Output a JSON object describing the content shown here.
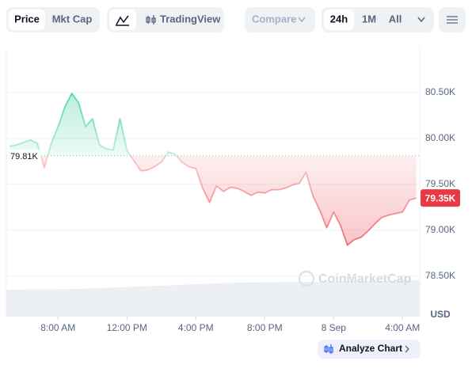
{
  "toolbar": {
    "price": "Price",
    "mkt_cap": "Mkt Cap",
    "tradingview": "TradingView",
    "compare": "Compare",
    "range_24h": "24h",
    "range_1m": "1M",
    "range_all": "All"
  },
  "chart_data": {
    "type": "line",
    "x": [
      5.2,
      5.6,
      6.0,
      6.4,
      6.8,
      7.2,
      7.6,
      8.0,
      8.4,
      8.8,
      9.2,
      9.6,
      10.0,
      10.4,
      10.8,
      11.2,
      11.6,
      12.0,
      12.4,
      12.8,
      13.2,
      13.6,
      14.0,
      14.4,
      14.8,
      15.2,
      15.6,
      16.0,
      16.4,
      16.8,
      17.2,
      17.6,
      18.0,
      18.4,
      18.8,
      19.2,
      19.6,
      20.0,
      20.4,
      20.8,
      21.2,
      21.6,
      22.0,
      22.4,
      22.8,
      23.2,
      23.6,
      24.0,
      24.4,
      24.8,
      25.2,
      25.6,
      26.0,
      26.4,
      26.8,
      27.2,
      27.6,
      28.0,
      28.4,
      28.8
    ],
    "series": [
      {
        "name": "Price",
        "color_up": "#16c784",
        "color_down": "#ea3943",
        "values": [
          79914,
          79931,
          79957,
          79983,
          79948,
          79680,
          79940,
          80129,
          80345,
          80491,
          80388,
          80129,
          80216,
          79931,
          79888,
          79871,
          80216,
          79871,
          79759,
          79647,
          79655,
          79690,
          79741,
          79853,
          79828,
          79741,
          79690,
          79672,
          79457,
          79302,
          79483,
          79422,
          79466,
          79457,
          79422,
          79379,
          79414,
          79405,
          79440,
          79440,
          79457,
          79491,
          79509,
          79629,
          79371,
          79216,
          79026,
          79198,
          79052,
          78836,
          78897,
          78923,
          78991,
          79069,
          79138,
          79164,
          79181,
          79198,
          79328,
          79350
        ]
      }
    ],
    "baseline": {
      "value": 79810,
      "label": "79.81K"
    },
    "last_price": {
      "value": 79350,
      "label": "79.35K"
    },
    "xlim": [
      5,
      29
    ],
    "xticks": [
      {
        "value": 8,
        "label": "8:00 AM"
      },
      {
        "value": 12,
        "label": "12:00 PM"
      },
      {
        "value": 16,
        "label": "4:00 PM"
      },
      {
        "value": 20,
        "label": "8:00 PM"
      },
      {
        "value": 24,
        "label": "8 Sep"
      },
      {
        "value": 28,
        "label": "4:00 AM"
      }
    ],
    "ylim": [
      78100,
      81000
    ],
    "yticks": [
      {
        "value": 78500,
        "label": "78.50K"
      },
      {
        "value": 79000,
        "label": "79.00K"
      },
      {
        "value": 79500,
        "label": "79.50K"
      },
      {
        "value": 80000,
        "label": "80.00K"
      },
      {
        "value": 80500,
        "label": "80.50K"
      }
    ],
    "currency": "USD",
    "grid": true
  },
  "watermark": "CoinMarketCap",
  "analyze_button": "Analyze Chart"
}
